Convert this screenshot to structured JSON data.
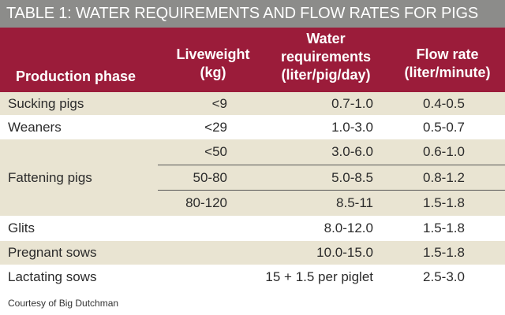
{
  "title": "TABLE 1: WATER REQUIREMENTS AND FLOW RATES FOR PIGS",
  "headers": {
    "phase": "Production phase",
    "live_1": "Liveweight",
    "live_2": "(kg)",
    "water_1": "Water",
    "water_2": "requirements",
    "water_3": "(liter/pig/day)",
    "flow_1": "Flow rate",
    "flow_2": "(liter/minute)"
  },
  "rows": [
    {
      "phase": "Sucking pigs",
      "live": "<9",
      "water": "0.7-1.0",
      "flow": "0.4-0.5"
    },
    {
      "phase": "Weaners",
      "live": "<29",
      "water": "1.0-3.0",
      "flow": "0.5-0.7"
    },
    {
      "phase": "",
      "live": "<50",
      "water": "3.0-6.0",
      "flow": "0.6-1.0"
    },
    {
      "phase": "Fattening pigs",
      "live": "50-80",
      "water": "5.0-8.5",
      "flow": "0.8-1.2"
    },
    {
      "phase": "",
      "live": "80-120",
      "water": "8.5-11",
      "flow": "1.5-1.8"
    },
    {
      "phase": "Glits",
      "live": "",
      "water": "8.0-12.0",
      "flow": "1.5-1.8"
    },
    {
      "phase": "Pregnant sows",
      "live": "",
      "water": "10.0-15.0",
      "flow": "1.5-1.8"
    },
    {
      "phase": "Lactating sows",
      "live": "",
      "water": "15 + 1.5 per piglet",
      "flow": "2.5-3.0"
    }
  ],
  "footer": "Courtesy of Big Dutchman",
  "colors": {
    "title_bg": "#8c8c8a",
    "header_bg": "#9b1c3a",
    "row_shade": "#e9e4d2"
  }
}
